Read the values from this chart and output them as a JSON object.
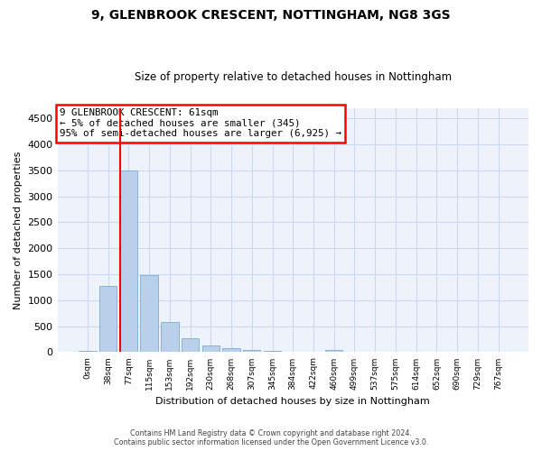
{
  "title": "9, GLENBROOK CRESCENT, NOTTINGHAM, NG8 3GS",
  "subtitle": "Size of property relative to detached houses in Nottingham",
  "xlabel": "Distribution of detached houses by size in Nottingham",
  "ylabel": "Number of detached properties",
  "bar_color": "#b8d0ea",
  "bar_edge_color": "#7aadd4",
  "grid_color": "#ccd8ec",
  "background_color": "#eef2fb",
  "bins": [
    "0sqm",
    "38sqm",
    "77sqm",
    "115sqm",
    "153sqm",
    "192sqm",
    "230sqm",
    "268sqm",
    "307sqm",
    "345sqm",
    "384sqm",
    "422sqm",
    "460sqm",
    "499sqm",
    "537sqm",
    "575sqm",
    "614sqm",
    "652sqm",
    "690sqm",
    "729sqm",
    "767sqm"
  ],
  "values": [
    28,
    1270,
    3500,
    1480,
    575,
    270,
    130,
    75,
    48,
    28,
    0,
    0,
    38,
    0,
    0,
    0,
    0,
    0,
    0,
    0,
    0
  ],
  "ylim": [
    0,
    4700
  ],
  "yticks": [
    0,
    500,
    1000,
    1500,
    2000,
    2500,
    3000,
    3500,
    4000,
    4500
  ],
  "annotation_text_line1": "9 GLENBROOK CRESCENT: 61sqm",
  "annotation_text_line2": "← 5% of detached houses are smaller (345)",
  "annotation_text_line3": "95% of semi-detached houses are larger (6,925) →",
  "annotation_box_facecolor": "white",
  "annotation_box_edgecolor": "red",
  "vline_color": "red",
  "vline_bin_index": 2,
  "footer_line1": "Contains HM Land Registry data © Crown copyright and database right 2024.",
  "footer_line2": "Contains public sector information licensed under the Open Government Licence v3.0."
}
